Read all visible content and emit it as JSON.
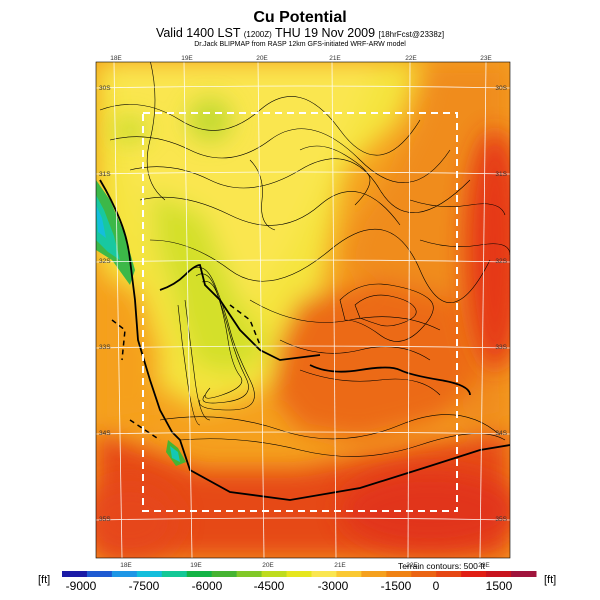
{
  "header": {
    "title": "Cu Potential",
    "valid_main": "Valid 1400 LST",
    "valid_code": "(1200Z)",
    "valid_date": "THU 19 Nov 2009",
    "valid_suffix": "[18hrFcst@2338z]",
    "credit": "Dr.Jack BLIPMAP from RASP 12km GFS-initiated WRF-ARW model"
  },
  "map": {
    "longitudes": [
      "18E",
      "19E",
      "20E",
      "21E",
      "22E",
      "23E"
    ],
    "latitudes": [
      "30S",
      "31S",
      "32S",
      "33S",
      "34S",
      "35S"
    ],
    "terrain_note": "Terrain contours: 500 ft"
  },
  "colorbar": {
    "unit_left": "[ft]",
    "unit_right": "[ft]",
    "ticks": [
      "-9000",
      "-7500",
      "-6000",
      "-4500",
      "-3000",
      "-1500",
      "0",
      "1500"
    ],
    "colors": [
      "#1a1aa6",
      "#1e5ad2",
      "#1e96e6",
      "#14bedc",
      "#14c896",
      "#14b446",
      "#46b432",
      "#82c828",
      "#bedc1e",
      "#e6e61e",
      "#fae650",
      "#fac832",
      "#f5a01e",
      "#f08214",
      "#eb6414",
      "#e64614",
      "#e11e14",
      "#c8141e",
      "#a0143c"
    ],
    "legend_colors": {
      "dark_blue": "#1a1aa6",
      "green": "#14b446",
      "yellow": "#fae650",
      "orange": "#f5a01e",
      "red": "#e11e14",
      "maroon": "#a0143c"
    }
  }
}
